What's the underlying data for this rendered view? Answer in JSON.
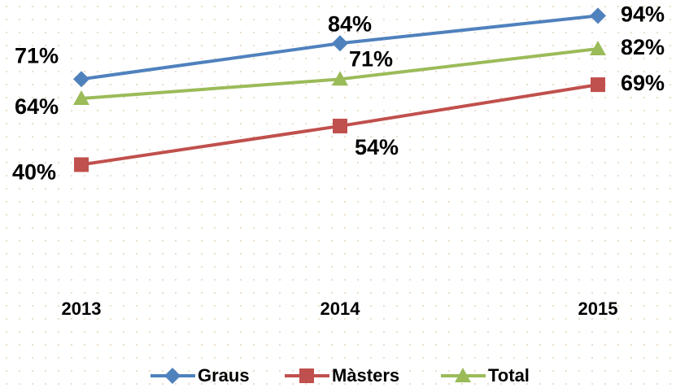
{
  "chart_data": {
    "type": "line",
    "categories": [
      "2013",
      "2014",
      "2015"
    ],
    "series": [
      {
        "name": "Graus",
        "color": "#4f81bd",
        "marker": "diamond",
        "values": [
          71,
          84,
          94
        ],
        "value_labels": [
          "71%",
          "84%",
          "94%"
        ]
      },
      {
        "name": "Màsters",
        "color": "#c0504d",
        "marker": "square",
        "values": [
          40,
          54,
          69
        ],
        "value_labels": [
          "40%",
          "54%",
          "69%"
        ]
      },
      {
        "name": "Total",
        "color": "#9bbb59",
        "marker": "triangle",
        "values": [
          64,
          71,
          82
        ],
        "value_labels": [
          "64%",
          "71%",
          "82%"
        ]
      }
    ],
    "ylim": [
      0,
      100
    ],
    "legend": "bottom"
  }
}
